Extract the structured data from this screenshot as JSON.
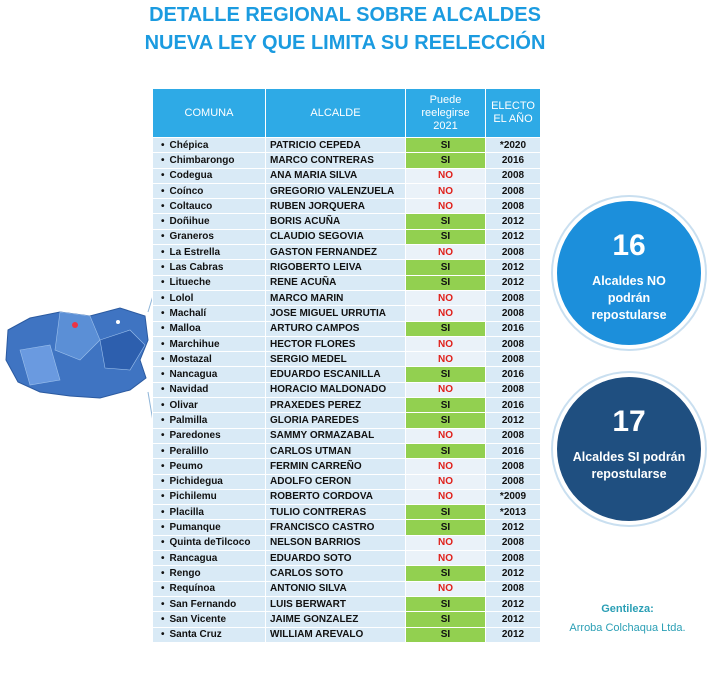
{
  "title": [
    "DETALLE REGIONAL SOBRE ALCALDES",
    "NUEVA LEY QUE LIMITA SU REELECCIÓN"
  ],
  "table": {
    "headers": [
      "COMUNA",
      "ALCALDE",
      "Puede reelegirse 2021",
      "ELECTO EL AÑO"
    ],
    "rows": [
      [
        "Chépica",
        "PATRICIO CEPEDA",
        "SI",
        "*2020"
      ],
      [
        "Chimbarongo",
        "MARCO CONTRERAS",
        "SI",
        "2016"
      ],
      [
        "Codegua",
        "ANA MARIA SILVA",
        "NO",
        "2008"
      ],
      [
        "Coínco",
        "GREGORIO VALENZUELA",
        "NO",
        "2008"
      ],
      [
        "Coltauco",
        "RUBEN JORQUERA",
        "NO",
        "2008"
      ],
      [
        "Doñihue",
        "BORIS ACUÑA",
        "SI",
        "2012"
      ],
      [
        "Graneros",
        "CLAUDIO SEGOVIA",
        "SI",
        "2012"
      ],
      [
        "La Estrella",
        "GASTON FERNANDEZ",
        "NO",
        "2008"
      ],
      [
        "Las Cabras",
        "RIGOBERTO LEIVA",
        "SI",
        "2012"
      ],
      [
        "Litueche",
        "RENE ACUÑA",
        "SI",
        "2012"
      ],
      [
        "Lolol",
        "MARCO MARIN",
        "NO",
        "2008"
      ],
      [
        "Machalí",
        "JOSE MIGUEL URRUTIA",
        "NO",
        "2008"
      ],
      [
        "Malloa",
        "ARTURO CAMPOS",
        "SI",
        "2016"
      ],
      [
        "Marchihue",
        "HECTOR FLORES",
        "NO",
        "2008"
      ],
      [
        "Mostazal",
        "SERGIO MEDEL",
        "NO",
        "2008"
      ],
      [
        "Nancagua",
        "EDUARDO ESCANILLA",
        "SI",
        "2016"
      ],
      [
        "Navidad",
        "HORACIO MALDONADO",
        "NO",
        "2008"
      ],
      [
        "Olivar",
        "PRAXEDES PEREZ",
        "SI",
        "2016"
      ],
      [
        "Palmilla",
        "GLORIA PAREDES",
        "SI",
        "2012"
      ],
      [
        "Paredones",
        "SAMMY ORMAZABAL",
        "NO",
        "2008"
      ],
      [
        "Peralillo",
        "CARLOS UTMAN",
        "SI",
        "2016"
      ],
      [
        "Peumo",
        "FERMIN CARREÑO",
        "NO",
        "2008"
      ],
      [
        "Pichidegua",
        "ADOLFO CERON",
        "NO",
        "2008"
      ],
      [
        "Pichilemu",
        "ROBERTO CORDOVA",
        "NO",
        "*2009"
      ],
      [
        "Placilla",
        "TULIO CONTRERAS",
        "SI",
        "*2013"
      ],
      [
        "Pumanque",
        "FRANCISCO CASTRO",
        "SI",
        "2012"
      ],
      [
        "Quinta deTilcoco",
        "NELSON BARRIOS",
        "NO",
        "2008"
      ],
      [
        "Rancagua",
        "EDUARDO SOTO",
        "NO",
        "2008"
      ],
      [
        "Rengo",
        "CARLOS SOTO",
        "SI",
        "2012"
      ],
      [
        "Requínoa",
        "ANTONIO SILVA",
        "NO",
        "2008"
      ],
      [
        "San Fernando",
        "LUIS BERWART",
        "SI",
        "2012"
      ],
      [
        "San Vicente",
        "JAIME GONZALEZ",
        "SI",
        "2012"
      ],
      [
        "Santa Cruz",
        "WILLIAM AREVALO",
        "SI",
        "2012"
      ]
    ]
  },
  "badges": [
    {
      "number": "16",
      "text": "Alcaldes NO podrán repostularse"
    },
    {
      "number": "17",
      "text": "Alcaldes SI podrán repostularse"
    }
  ],
  "credit": {
    "label": "Gentileza:",
    "source": "Arroba Colchaqua Ltda."
  }
}
